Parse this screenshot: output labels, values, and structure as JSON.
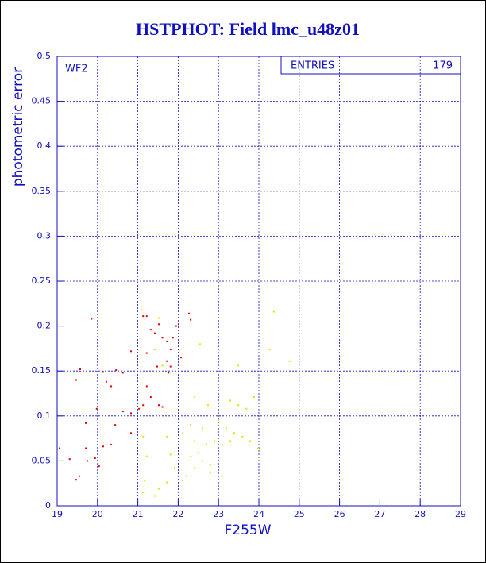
{
  "chart_data": {
    "type": "scatter",
    "title": "HSTPHOT: Field lmc_u48z01",
    "xlabel": "F255W",
    "ylabel": "photometric error",
    "panel_label": "WF2",
    "stats": {
      "label": "ENTRIES",
      "value": 179
    },
    "xlim": [
      19,
      29
    ],
    "ylim": [
      0,
      0.5
    ],
    "xticks": [
      19,
      20,
      21,
      22,
      23,
      24,
      25,
      26,
      27,
      28,
      29
    ],
    "yticks": [
      0,
      0.05,
      0.1,
      0.15,
      0.2,
      0.25,
      0.3,
      0.35,
      0.4,
      0.45,
      0.5
    ],
    "grid": true,
    "series": [
      {
        "color": "#e00000",
        "x": [
          19.85,
          19.57,
          19.47,
          20.14,
          20.22,
          20.46,
          20.63,
          20.34,
          20.83,
          21.13,
          21.22,
          21.32,
          21.42,
          21.52,
          21.61,
          21.72,
          21.81,
          21.87,
          21.95,
          22.01,
          22.27,
          22.31,
          22.07,
          21.76,
          21.48,
          21.22,
          21.22,
          21.32,
          21.52,
          21.61,
          21.13,
          21.03,
          20.83,
          20.63,
          20.44,
          20.34,
          20.14,
          20.04,
          19.94,
          19.75,
          19.71,
          19.71,
          19.55,
          19.47,
          19.31,
          19.06,
          19.98,
          20.83,
          21.72,
          21.81
        ],
        "values": [
          0.208,
          0.152,
          0.14,
          0.149,
          0.138,
          0.151,
          0.148,
          0.133,
          0.172,
          0.211,
          0.211,
          0.196,
          0.192,
          0.202,
          0.187,
          0.183,
          0.174,
          0.187,
          0.2,
          0.202,
          0.214,
          0.207,
          0.165,
          0.148,
          0.155,
          0.17,
          0.133,
          0.121,
          0.112,
          0.11,
          0.112,
          0.108,
          0.103,
          0.105,
          0.09,
          0.068,
          0.066,
          0.044,
          0.053,
          0.05,
          0.064,
          0.092,
          0.033,
          0.029,
          0.052,
          0.064,
          0.108,
          0.081,
          0.161,
          0.155
        ]
      },
      {
        "color": "#e8e000",
        "x": [
          21.09,
          21.52,
          21.42,
          21.61,
          22.54,
          22.41,
          22.74,
          22.99,
          23.29,
          23.49,
          23.69,
          23.88,
          23.19,
          23.39,
          23.59,
          23.78,
          23.29,
          23.09,
          22.6,
          22.31,
          22.11,
          22.41,
          22.7,
          22.5,
          22.31,
          22.6,
          22.8,
          22.41,
          22.21,
          22.11,
          21.91,
          21.81,
          21.72,
          21.13,
          21.22,
          21.17,
          21.13,
          21.52,
          21.72,
          21.42,
          24.37,
          24.27,
          24.76,
          23.49,
          22.9,
          23.98,
          23.09,
          22.8
        ],
        "values": [
          0.218,
          0.209,
          0.174,
          0.156,
          0.18,
          0.121,
          0.112,
          0.095,
          0.117,
          0.112,
          0.108,
          0.121,
          0.086,
          0.081,
          0.077,
          0.072,
          0.072,
          0.068,
          0.086,
          0.09,
          0.081,
          0.072,
          0.068,
          0.059,
          0.055,
          0.05,
          0.046,
          0.042,
          0.033,
          0.028,
          0.042,
          0.057,
          0.077,
          0.077,
          0.055,
          0.028,
          0.015,
          0.019,
          0.026,
          0.011,
          0.216,
          0.174,
          0.161,
          0.156,
          0.072,
          0.064,
          0.033,
          0.037
        ]
      }
    ]
  }
}
